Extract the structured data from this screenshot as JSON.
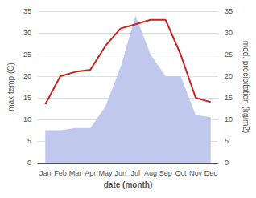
{
  "chart_data": {
    "type": "line",
    "xlabel": "date (month)",
    "ylabel": "max temp (C)",
    "y2label": "med. precipitation (kg/m2)",
    "categories": [
      "Jan",
      "Feb",
      "Mar",
      "Apr",
      "May",
      "Jun",
      "Jul",
      "Aug",
      "Sep",
      "Oct",
      "Nov",
      "Dec"
    ],
    "series": [
      {
        "type": "line",
        "color": "#cc2222",
        "values": [
          13.5,
          20.0,
          21.0,
          21.5,
          27.0,
          31.0,
          32.0,
          33.0,
          33.0,
          25.0,
          15.0,
          14.0
        ]
      },
      {
        "type": "area",
        "color": "#c0c8ee",
        "axis": "y2",
        "values": [
          7.5,
          7.5,
          8.0,
          8.0,
          13.0,
          22.0,
          34.0,
          25.0,
          20.0,
          20.0,
          11.0,
          10.5
        ]
      }
    ],
    "ylim": [
      0,
      35
    ],
    "yticks": [
      0,
      5,
      10,
      15,
      20,
      25,
      30,
      35
    ],
    "y2lim": [
      0,
      35
    ],
    "y2ticks": [
      0,
      5,
      10,
      15,
      20,
      25,
      30,
      35
    ],
    "grid": true
  }
}
